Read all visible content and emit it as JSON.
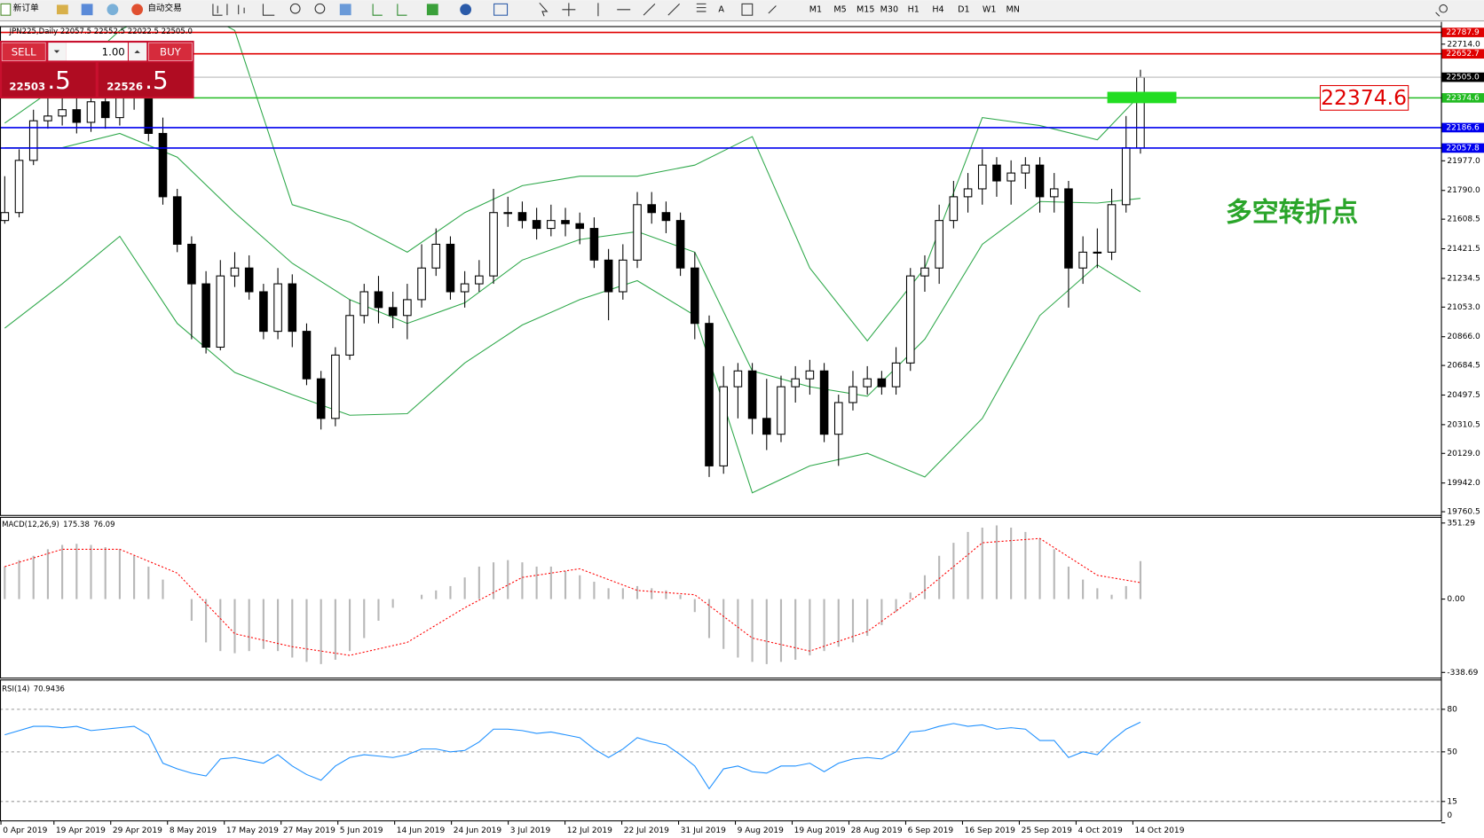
{
  "toolbar": {
    "new_order": "新订单",
    "auto_trading": "自动交易",
    "timeframes": [
      "M1",
      "M5",
      "M15",
      "M30",
      "H1",
      "H4",
      "D1",
      "W1",
      "MN"
    ]
  },
  "trade_panel": {
    "sell": "SELL",
    "lots": "1.00",
    "buy": "BUY",
    "sell_big": "22503",
    "sell_small": ".5",
    "buy_big": "22526",
    "buy_small": ".5"
  },
  "chart_data": [
    {
      "type": "candlestick",
      "title": "JPN225,Daily  22057.5 22552.5 22022.5 22505.0",
      "open": [
        21600,
        21650,
        21980,
        22230,
        22260,
        22300,
        22220,
        22350,
        22250,
        22450,
        22400,
        22150,
        21750,
        21450,
        21200,
        20800,
        21250,
        21300,
        21150,
        20900,
        21200,
        20900,
        20600,
        20350,
        20750,
        21000,
        21150,
        21050,
        21000,
        21100,
        21300,
        21450,
        21150,
        21200,
        21250,
        21650,
        21650,
        21600,
        21550,
        21600,
        21580,
        21550,
        21350,
        21150,
        21350,
        21700,
        21650,
        21600,
        21300,
        20950,
        20050,
        20550,
        20650,
        20350,
        20250,
        20550,
        20600,
        20650,
        20250,
        20450,
        20550,
        20600,
        20550,
        20700,
        21250,
        21300,
        21600,
        21750,
        21800,
        21950,
        21850,
        21900,
        21950,
        21750,
        21800,
        21300,
        21400,
        21400,
        21700,
        22057.5
      ],
      "high": [
        21880,
        22050,
        22300,
        22380,
        22400,
        22380,
        22450,
        22420,
        22550,
        22520,
        22480,
        22250,
        21800,
        21500,
        21280,
        21350,
        21400,
        21380,
        21200,
        21300,
        21260,
        20950,
        20650,
        20800,
        21100,
        21200,
        21250,
        21150,
        21200,
        21450,
        21550,
        21500,
        21280,
        21350,
        21800,
        21750,
        21720,
        21680,
        21700,
        21680,
        21650,
        21620,
        21420,
        21450,
        21780,
        21780,
        21720,
        21650,
        21400,
        21000,
        20680,
        20700,
        20700,
        20600,
        20620,
        20680,
        20720,
        20700,
        20500,
        20650,
        20680,
        20650,
        20800,
        21300,
        21380,
        21700,
        21850,
        21900,
        22050,
        22000,
        21980,
        22000,
        22000,
        21900,
        21850,
        21500,
        21550,
        21800,
        22260,
        22552.5
      ],
      "low": [
        21580,
        21620,
        21950,
        22180,
        22200,
        22150,
        22160,
        22180,
        22200,
        22300,
        22100,
        21700,
        21400,
        20850,
        20760,
        20780,
        21180,
        21100,
        20850,
        20850,
        20800,
        20560,
        20280,
        20300,
        20720,
        20950,
        20950,
        20920,
        20850,
        21050,
        21250,
        21100,
        21050,
        21150,
        21200,
        21560,
        21550,
        21480,
        21500,
        21500,
        21450,
        21300,
        20970,
        21100,
        21300,
        21580,
        21520,
        21250,
        20850,
        19980,
        20000,
        20350,
        20250,
        20150,
        20200,
        20450,
        20500,
        20200,
        20050,
        20400,
        20500,
        20500,
        20500,
        20650,
        21150,
        21200,
        21550,
        21650,
        21700,
        21750,
        21700,
        21800,
        21650,
        21650,
        21050,
        21200,
        21300,
        21350,
        21650,
        22022.5
      ],
      "close": [
        21650,
        21980,
        22230,
        22260,
        22300,
        22220,
        22350,
        22250,
        22450,
        22400,
        22150,
        21750,
        21450,
        21200,
        20800,
        21250,
        21300,
        21150,
        20900,
        21200,
        20900,
        20600,
        20350,
        20750,
        21000,
        21150,
        21050,
        21000,
        21100,
        21300,
        21450,
        21150,
        21200,
        21250,
        21650,
        21650,
        21600,
        21550,
        21600,
        21580,
        21550,
        21350,
        21150,
        21350,
        21700,
        21650,
        21600,
        21300,
        20950,
        20050,
        20550,
        20650,
        20350,
        20250,
        20550,
        20600,
        20650,
        20250,
        20450,
        20550,
        20600,
        20550,
        20700,
        21250,
        21300,
        21600,
        21750,
        21800,
        21950,
        21850,
        21900,
        21950,
        21750,
        21800,
        21300,
        21400,
        21400,
        21700,
        22060,
        22505
      ],
      "up_color": "#ffffff",
      "down_color": "#000000",
      "bollinger": {
        "color": "#2ea84a",
        "x": [
          0,
          4,
          8,
          12,
          16,
          20,
          24,
          28,
          32,
          36,
          40,
          44,
          48,
          52,
          56,
          60,
          64,
          68,
          72,
          76,
          79
        ],
        "upper": [
          22215,
          22470,
          22800,
          23000,
          22800,
          21700,
          21590,
          21400,
          21650,
          21820,
          21880,
          21880,
          21950,
          22130,
          21300,
          20840,
          21300,
          22250,
          22200,
          22110,
          22395
        ],
        "middle": [
          22060,
          22060,
          22150,
          22000,
          21650,
          21330,
          21100,
          20950,
          21080,
          21350,
          21480,
          21530,
          21400,
          20650,
          20550,
          20490,
          20850,
          21450,
          21720,
          21710,
          21740
        ],
        "lower": [
          20920,
          21200,
          21500,
          20950,
          20640,
          20500,
          20370,
          20380,
          20700,
          20940,
          21100,
          21220,
          21000,
          19880,
          20050,
          20130,
          19980,
          20350,
          21000,
          21320,
          21150
        ]
      },
      "levels": [
        {
          "value": 22787.9,
          "color": "#e00000"
        },
        {
          "value": 22652.7,
          "color": "#e00000"
        },
        {
          "value": 22374.6,
          "color": "#22bb22",
          "callout": true
        },
        {
          "value": 22186.6,
          "color": "#0000ee"
        },
        {
          "value": 22057.8,
          "color": "#0000ee"
        }
      ],
      "current_price": {
        "value": 22505,
        "label": "22505.0"
      },
      "annotation": "多空转折点",
      "annotation_color": "#2aa52a",
      "ylim": [
        19737,
        22813
      ],
      "yticks": [
        {
          "value": 22714,
          "label": "22714.0"
        },
        {
          "value": 21977,
          "label": "21977.0"
        },
        {
          "value": 21790,
          "label": "21790.0"
        },
        21608.5,
        21421.5,
        21234.5,
        {
          "value": 21053,
          "label": "21053.0"
        },
        {
          "value": 20866,
          "label": "20866.0"
        },
        20684.5,
        20497.5,
        20310.5,
        {
          "value": 20129,
          "label": "20129.0"
        },
        {
          "value": 19942,
          "label": "19942.0"
        },
        19760.5
      ],
      "dates": [
        "0 Apr 2019",
        "19 Apr 2019",
        "29 Apr 2019",
        "8 May 2019",
        "17 May 2019",
        "27 May 2019",
        "5 Jun 2019",
        "14 Jun 2019",
        "24 Jun 2019",
        "3 Jul 2019",
        "12 Jul 2019",
        "22 Jul 2019",
        "31 Jul 2019",
        "9 Aug 2019",
        "19 Aug 2019",
        "28 Aug 2019",
        "6 Sep 2019",
        "16 Sep 2019",
        "25 Sep 2019",
        "4 Oct 2019",
        "14 Oct 2019"
      ]
    },
    {
      "type": "macd",
      "name": "MACD(12,26,9)",
      "histogram": [
        150,
        180,
        200,
        230,
        250,
        255,
        250,
        240,
        230,
        200,
        150,
        90,
        0,
        -100,
        -200,
        -240,
        -250,
        -240,
        -230,
        -240,
        -270,
        -290,
        -300,
        -280,
        -240,
        -180,
        -100,
        -40,
        0,
        20,
        40,
        60,
        100,
        150,
        170,
        180,
        170,
        150,
        150,
        130,
        110,
        80,
        50,
        50,
        60,
        50,
        40,
        20,
        -60,
        -180,
        -230,
        -270,
        -290,
        -300,
        -290,
        -280,
        -260,
        -240,
        -220,
        -200,
        -170,
        -120,
        -60,
        30,
        110,
        200,
        260,
        310,
        330,
        340,
        330,
        310,
        280,
        230,
        150,
        90,
        50,
        20,
        60,
        175.38
      ],
      "histogram_color": "#b8b8b8",
      "signal": {
        "x": [
          0,
          4,
          8,
          12,
          16,
          20,
          24,
          28,
          32,
          36,
          40,
          44,
          48,
          52,
          56,
          60,
          64,
          68,
          72,
          76,
          79
        ],
        "values": [
          150,
          230,
          230,
          120,
          -160,
          -220,
          -260,
          -200,
          -40,
          100,
          140,
          40,
          20,
          -180,
          -240,
          -150,
          40,
          260,
          280,
          110,
          76.09
        ],
        "color": "#ff0000"
      },
      "ylim": [
        -338.69,
        351.29
      ],
      "yticks": [
        351.29,
        {
          "value": 0,
          "label": "0.00"
        },
        -338.69
      ]
    },
    {
      "type": "rsi",
      "name": "RSI(14)",
      "values": [
        62,
        65,
        68,
        68,
        67,
        68,
        65,
        66,
        67,
        68,
        62,
        42,
        38,
        35,
        33,
        45,
        46,
        44,
        42,
        48,
        40,
        34,
        30,
        40,
        46,
        48,
        47,
        46,
        48,
        52,
        52,
        50,
        51,
        57,
        66,
        66,
        65,
        63,
        64,
        62,
        60,
        52,
        46,
        52,
        60,
        57,
        55,
        48,
        40,
        24,
        38,
        40,
        36,
        35,
        40,
        40,
        42,
        36,
        42,
        45,
        46,
        45,
        50,
        64,
        65,
        68,
        70,
        68,
        69,
        66,
        67,
        66,
        58,
        58,
        46,
        50,
        48,
        58,
        66,
        70.9436
      ],
      "color": "#1e90ff",
      "ylim": [
        0,
        100
      ],
      "yticks": [
        80,
        50,
        15,
        0
      ]
    }
  ]
}
